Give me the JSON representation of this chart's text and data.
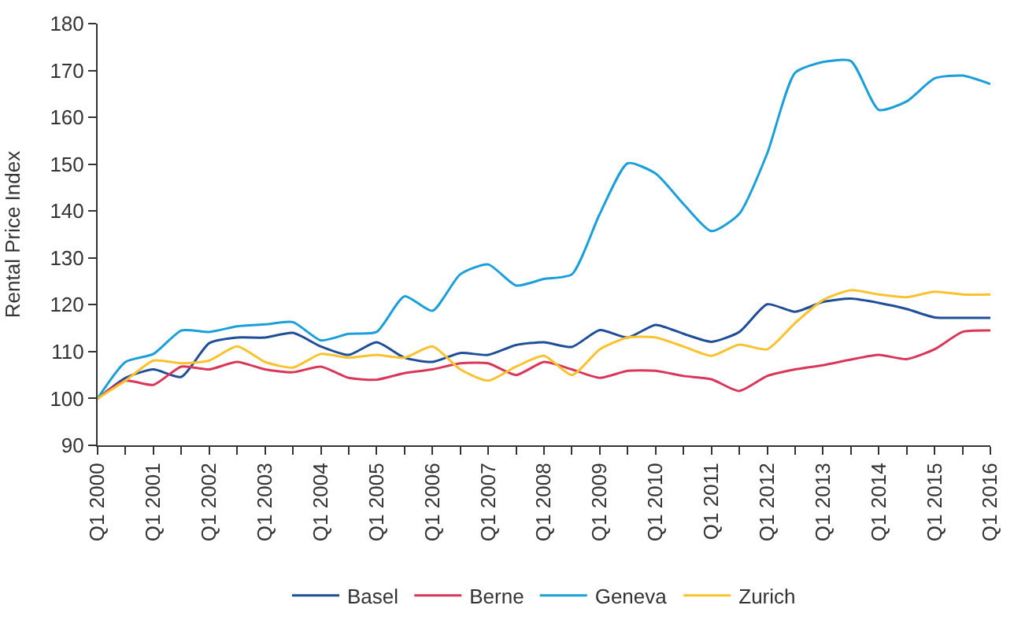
{
  "chart_data": {
    "type": "line",
    "ylabel": "Rental Price Index",
    "categories": [
      "Q1 2000",
      null,
      "Q1 2001",
      null,
      "Q1 2002",
      null,
      "Q1 2003",
      null,
      "Q1 2004",
      null,
      "Q1 2005",
      null,
      "Q1 2006",
      null,
      "Q1 2007",
      null,
      "Q1 2008",
      null,
      "Q1 2009",
      null,
      "Q1 2010",
      null,
      "Q1 2011",
      null,
      "Q1 2012",
      null,
      "Q1 2013",
      null,
      "Q1 2014",
      null,
      "Q1 2015",
      null,
      "Q1 2016"
    ],
    "series": [
      {
        "name": "Basel",
        "color": "#1f4e99",
        "values": [
          100,
          104.4,
          106.2,
          104.6,
          111.8,
          113,
          113,
          114,
          111.1,
          109.3,
          112,
          108.7,
          107.8,
          109.7,
          109.3,
          111.4,
          112,
          111,
          114.6,
          113,
          115.7,
          113.8,
          112.1,
          114.2,
          120.1,
          118.5,
          120.6,
          121.3,
          120.4,
          119.1,
          117.3,
          117.2,
          117.2
        ]
      },
      {
        "name": "Berne",
        "color": "#d9375a",
        "values": [
          100,
          103.8,
          102.9,
          106.8,
          106.2,
          107.8,
          106.2,
          105.6,
          106.8,
          104.4,
          104,
          105.4,
          106.2,
          107.5,
          107.5,
          105,
          107.8,
          106.2,
          104.4,
          105.9,
          105.9,
          104.8,
          104.1,
          101.6,
          104.8,
          106.2,
          107.1,
          108.3,
          109.3,
          108.4,
          110.5,
          114.2,
          114.5
        ]
      },
      {
        "name": "Geneva",
        "color": "#1a9fdb",
        "values": [
          100,
          107.8,
          109.5,
          114.5,
          114.2,
          115.4,
          115.8,
          116.3,
          112.4,
          113.8,
          114.2,
          121.8,
          118.7,
          126.5,
          128.6,
          124.1,
          125.5,
          126.5,
          139.4,
          150.2,
          148,
          141.5,
          135.7,
          139.4,
          152.3,
          169.5,
          171.8,
          172,
          161.6,
          163.4,
          168.3,
          168.9,
          167.1
        ]
      },
      {
        "name": "Zurich",
        "color": "#f9c22e",
        "values": [
          100,
          103.8,
          108.1,
          107.5,
          108.1,
          111.1,
          107.8,
          106.6,
          109.5,
          108.7,
          109.3,
          108.7,
          111.1,
          106.2,
          103.8,
          106.8,
          109.1,
          105,
          110.5,
          113,
          113,
          111.1,
          109.1,
          111.5,
          110.5,
          116.1,
          121,
          123.1,
          122.2,
          121.6,
          122.8,
          122.2,
          122.2
        ]
      }
    ],
    "ylim": [
      90,
      180
    ],
    "yticks": [
      90,
      100,
      110,
      120,
      130,
      140,
      150,
      160,
      170,
      180
    ],
    "legend": "bottom",
    "marker": "none",
    "line_style": "solid"
  }
}
